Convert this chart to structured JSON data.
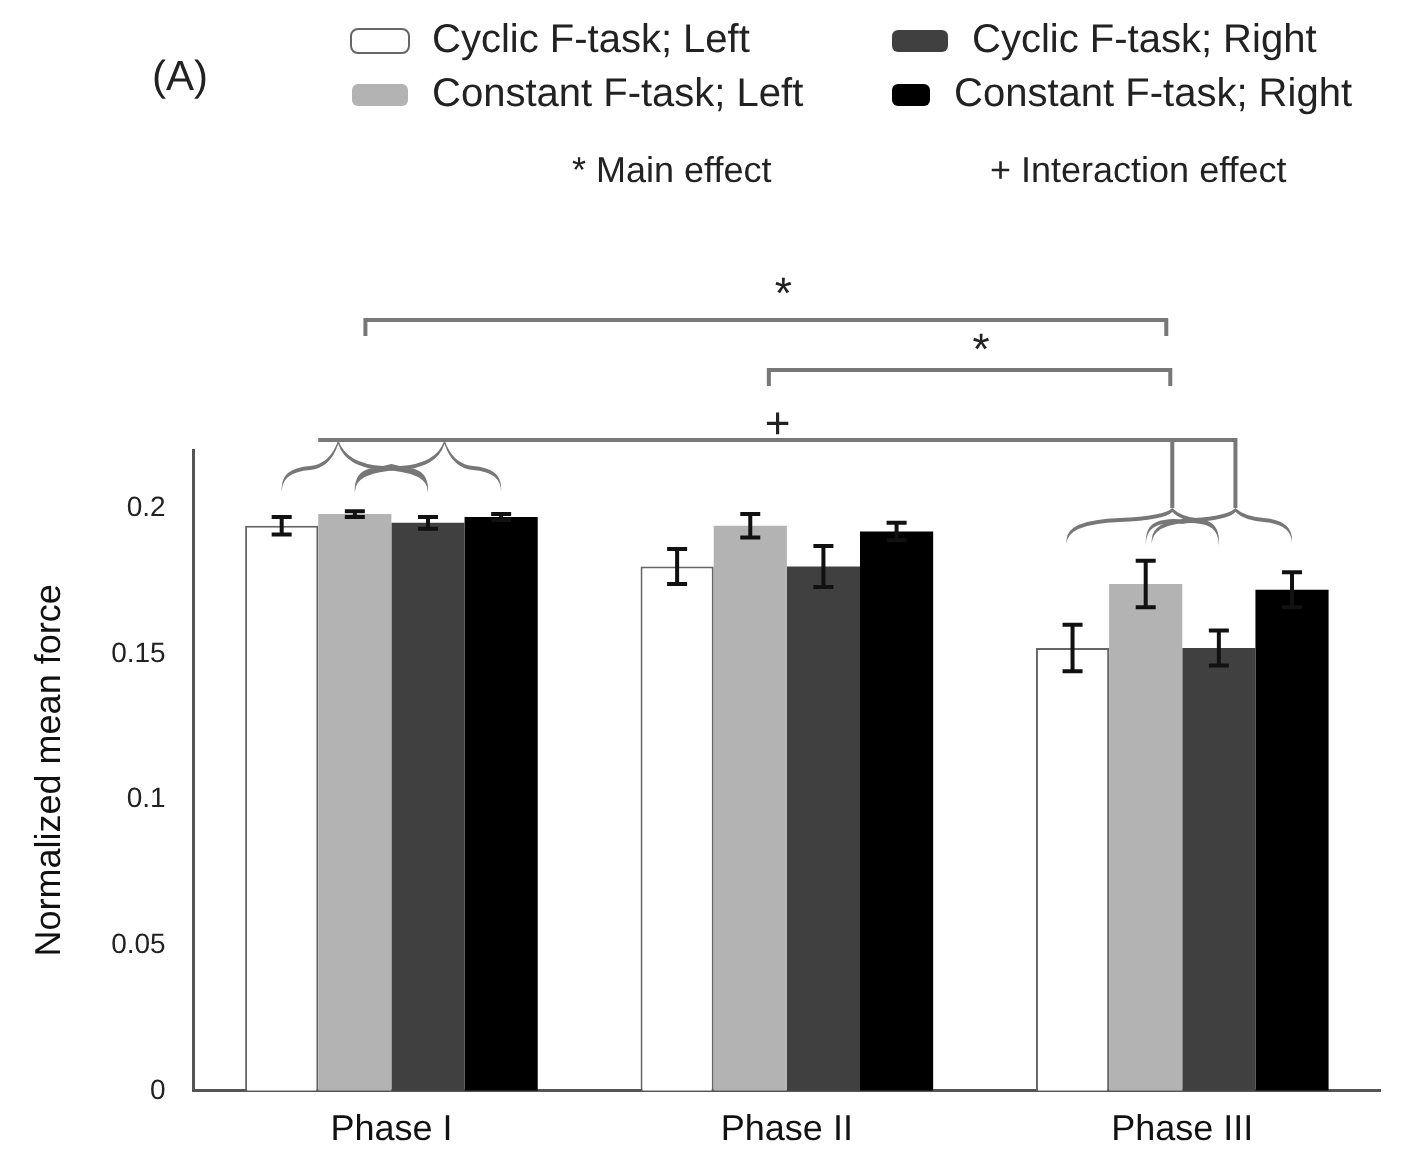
{
  "chart_data": {
    "type": "bar",
    "ylabel": "Normalized mean force",
    "categories": [
      "Phase I",
      "Phase II",
      "Phase III"
    ],
    "series": [
      {
        "name": "Cyclic F-task; Left",
        "color": "#ffffff",
        "values": [
          0.194,
          0.18,
          0.152
        ],
        "errors": [
          0.003,
          0.006,
          0.008
        ]
      },
      {
        "name": "Constant F-task; Left",
        "color": "#b3b3b3",
        "values": [
          0.198,
          0.194,
          0.174
        ],
        "errors": [
          0.001,
          0.004,
          0.008
        ]
      },
      {
        "name": "Cyclic F-task; Right",
        "color": "#404040",
        "values": [
          0.195,
          0.18,
          0.152
        ],
        "errors": [
          0.002,
          0.007,
          0.006
        ]
      },
      {
        "name": "Constant F-task; Right",
        "color": "#000000",
        "values": [
          0.197,
          0.192,
          0.172
        ],
        "errors": [
          0.001,
          0.003,
          0.006
        ]
      }
    ],
    "ylim": [
      0,
      0.22
    ],
    "yticks": [
      0,
      0.05,
      0.1,
      0.15,
      0.2
    ],
    "grid": false,
    "legend": "top",
    "annotations": [
      "(A)",
      "* Main effect",
      "+ Interaction effect",
      "*",
      "*",
      "+"
    ]
  }
}
